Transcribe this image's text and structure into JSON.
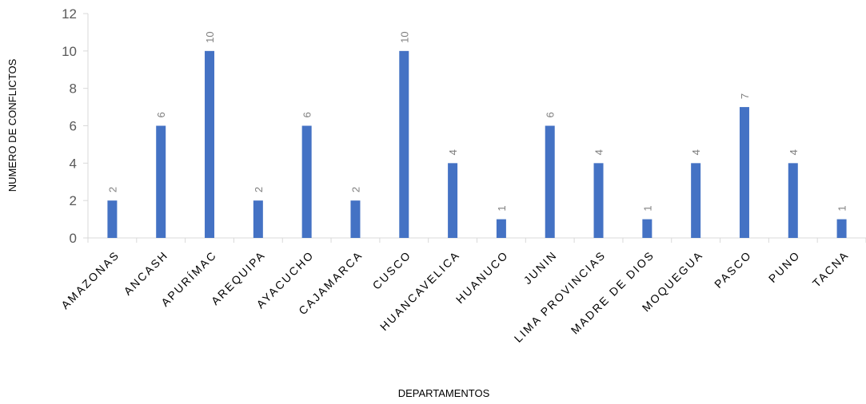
{
  "chart_data": {
    "type": "bar",
    "title": "",
    "xlabel": "DEPARTAMENTOS",
    "ylabel": "NUMERO DE CONFLICTOS",
    "categories": [
      "AMAZONAS",
      "ANCASH",
      "APURÍMAC",
      "AREQUIPA",
      "AYACUCHO",
      "CAJAMARCA",
      "CUSCO",
      "HUANCAVELICA",
      "HUANUCO",
      "JUNIN",
      "LIMA PROVINCIAS",
      "MADRE DE DIOS",
      "MOQUEGUA",
      "PASCO",
      "PUNO",
      "TACNA"
    ],
    "values": [
      2,
      6,
      10,
      2,
      6,
      2,
      10,
      4,
      1,
      6,
      4,
      1,
      4,
      7,
      4,
      1
    ],
    "ylim": [
      0,
      12
    ],
    "yticks": [
      0,
      2,
      4,
      6,
      8,
      10,
      12
    ],
    "grid": false,
    "legend": "none",
    "data_labels": true,
    "colors": {
      "bar": "#4472C4",
      "axis": "#D9D9D9"
    }
  }
}
